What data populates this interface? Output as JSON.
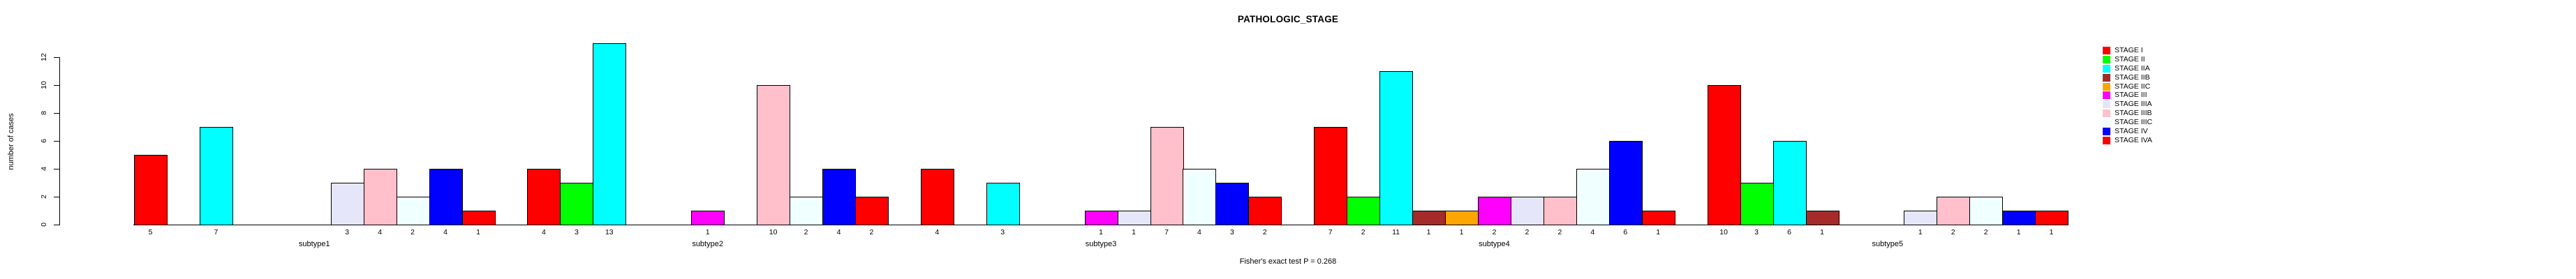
{
  "chart_data": {
    "type": "bar",
    "title": "PATHOLOGIC_STAGE",
    "xlabel": "",
    "ylabel": "number of cases",
    "ylim": [
      0,
      13
    ],
    "yticks": [
      0,
      2,
      4,
      6,
      8,
      10,
      12
    ],
    "grid": false,
    "legend_position": "top-right",
    "bar_value_labels": true,
    "categories": [
      "subtype1",
      "subtype2",
      "subtype3",
      "subtype4",
      "subtype5"
    ],
    "series": [
      {
        "name": "STAGE I",
        "color": "#FF0000",
        "values": [
          5,
          4,
          4,
          7,
          10
        ]
      },
      {
        "name": "STAGE II",
        "color": "#00FF00",
        "values": [
          0,
          3,
          0,
          2,
          3
        ]
      },
      {
        "name": "STAGE IIA",
        "color": "#00FFFF",
        "values": [
          7,
          13,
          3,
          11,
          6
        ]
      },
      {
        "name": "STAGE IIB",
        "color": "#A52A2A",
        "values": [
          0,
          0,
          0,
          1,
          1
        ]
      },
      {
        "name": "STAGE IIC",
        "color": "#FFA500",
        "values": [
          0,
          0,
          0,
          1,
          0
        ]
      },
      {
        "name": "STAGE III",
        "color": "#FF00FF",
        "values": [
          0,
          1,
          1,
          2,
          0
        ]
      },
      {
        "name": "STAGE IIIA",
        "color": "#E6E6FA",
        "values": [
          3,
          0,
          1,
          2,
          1
        ]
      },
      {
        "name": "STAGE IIIB",
        "color": "#FFC0CB",
        "values": [
          4,
          10,
          7,
          2,
          2
        ]
      },
      {
        "name": "STAGE IIIC",
        "color": "#F0FFFF",
        "values": [
          2,
          2,
          4,
          4,
          2
        ]
      },
      {
        "name": "STAGE IV",
        "color": "#0000FF",
        "values": [
          4,
          4,
          3,
          6,
          1
        ]
      },
      {
        "name": "STAGE IVA",
        "color": "#FF0000",
        "values": [
          1,
          2,
          2,
          1,
          1
        ]
      }
    ],
    "annotation": "Fisher's exact test P = 0.268"
  }
}
